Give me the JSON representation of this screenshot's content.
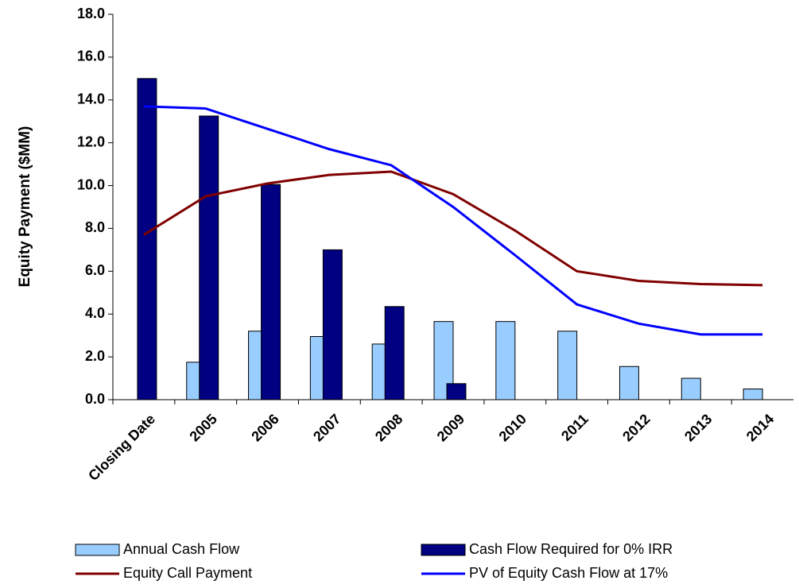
{
  "chart_data": {
    "type": "bar",
    "y_label": "Equity Payment ($MM)",
    "categories": [
      "Closing Date",
      "2005",
      "2006",
      "2007",
      "2008",
      "2009",
      "2010",
      "2011",
      "2012",
      "2013",
      "2014"
    ],
    "series": [
      {
        "name": "Annual Cash Flow",
        "kind": "bar",
        "color": "#99ccff",
        "values": [
          null,
          1.75,
          3.2,
          2.95,
          2.6,
          3.65,
          3.65,
          3.2,
          1.55,
          1.0,
          0.5
        ]
      },
      {
        "name": "Cash Flow Required for 0% IRR",
        "kind": "bar",
        "color": "#000080",
        "values": [
          15.0,
          13.25,
          10.05,
          7.0,
          4.35,
          0.75,
          null,
          null,
          null,
          null,
          null
        ]
      },
      {
        "name": "Equity Call Payment",
        "kind": "line",
        "color": "#800000",
        "values": [
          7.7,
          9.5,
          10.1,
          10.5,
          10.65,
          9.6,
          7.9,
          6.0,
          5.55,
          5.4,
          5.35
        ]
      },
      {
        "name": "PV of Equity Cash Flow at 17%",
        "kind": "line",
        "color": "#0000ff",
        "values": [
          13.7,
          13.6,
          12.65,
          11.7,
          10.95,
          9.0,
          6.75,
          4.45,
          3.55,
          3.05,
          3.05
        ]
      }
    ],
    "ylim": [
      0,
      18
    ],
    "yticks": [
      {
        "value": 0,
        "label": "0.0"
      },
      {
        "value": 2,
        "label": "2.0"
      },
      {
        "value": 4,
        "label": "4.0"
      },
      {
        "value": 6,
        "label": "6.0"
      },
      {
        "value": 8,
        "label": "8.0"
      },
      {
        "value": 10,
        "label": "10.0"
      },
      {
        "value": 12,
        "label": "12.0"
      },
      {
        "value": 14,
        "label": "14.0"
      },
      {
        "value": 16,
        "label": "16.0"
      },
      {
        "value": 18,
        "label": "18.0"
      }
    ],
    "grid": false
  }
}
